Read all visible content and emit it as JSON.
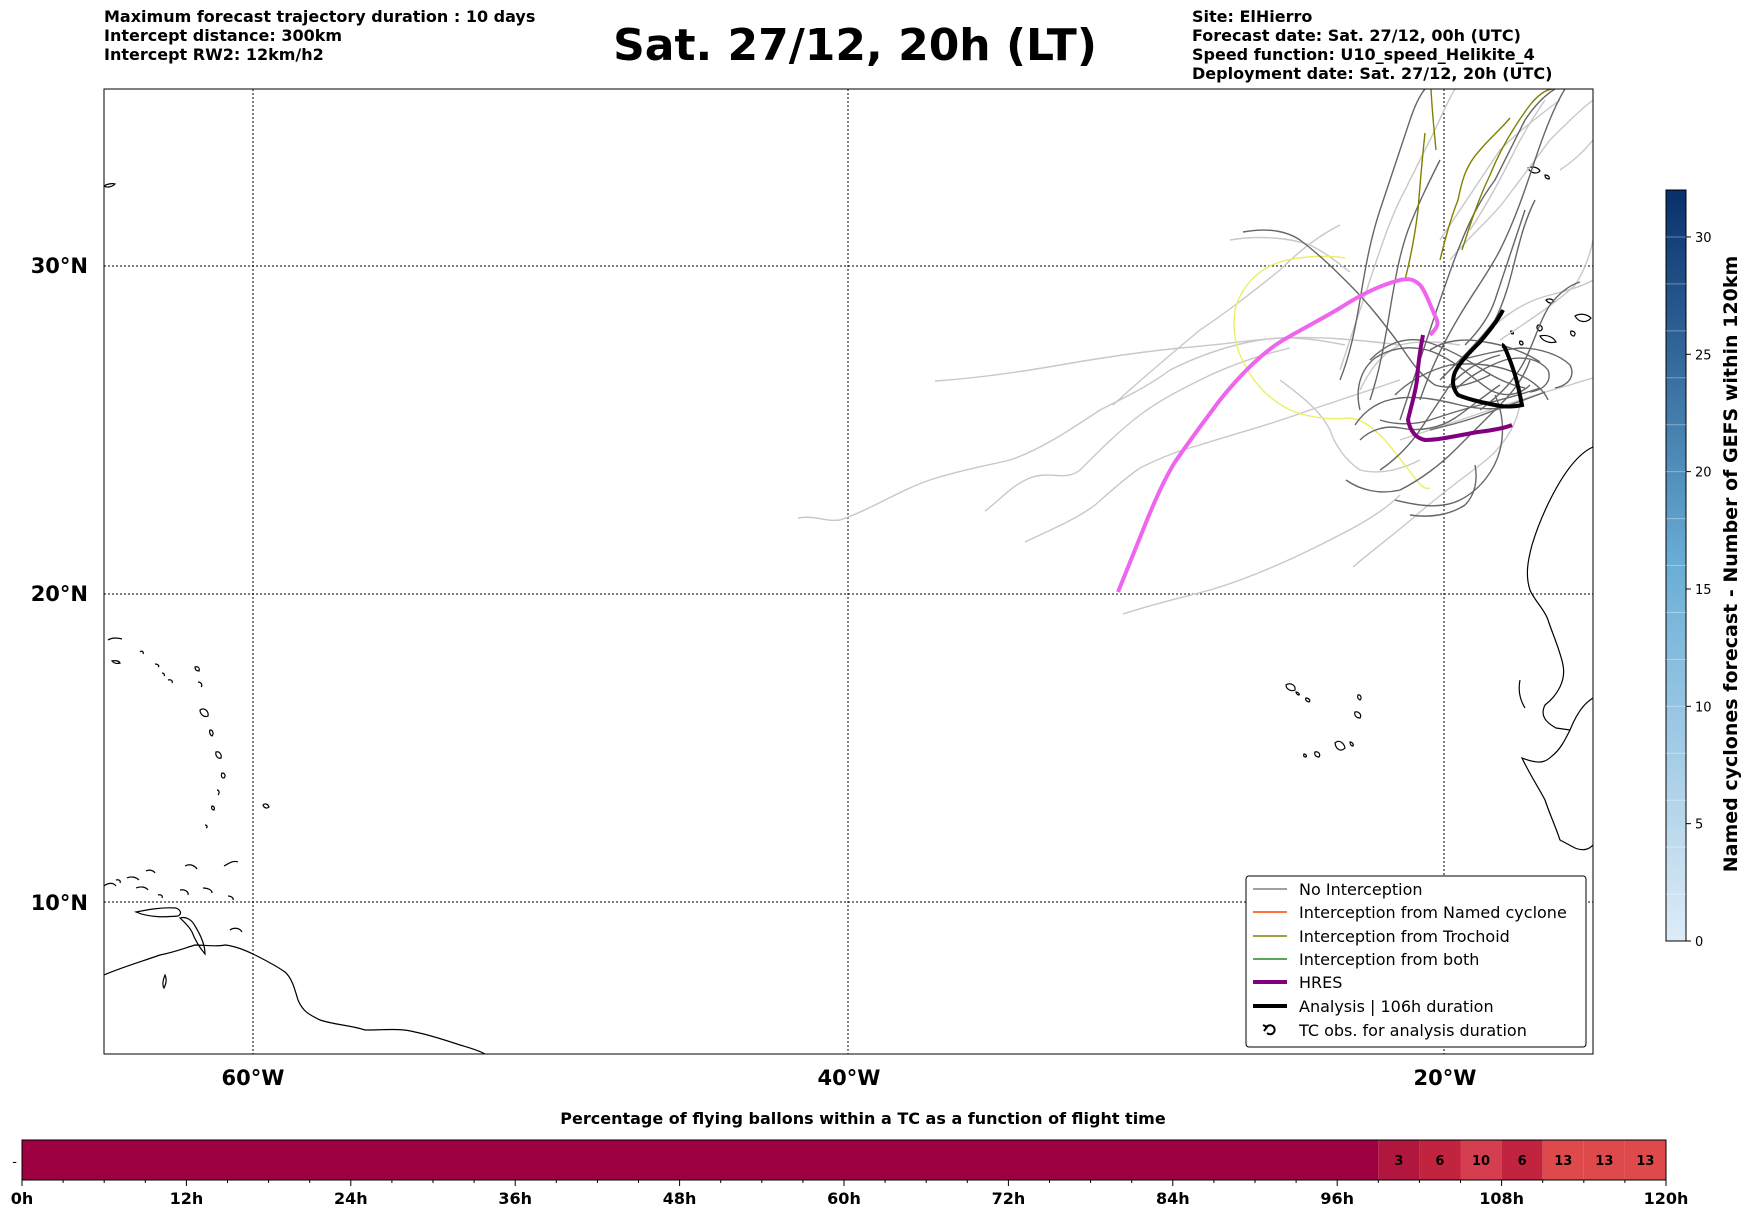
{
  "header": {
    "left_lines": [
      "Maximum forecast trajectory duration : 10 days",
      "Intercept distance: 300km",
      "Intercept RW2: 12km/h2"
    ],
    "title": "Sat. 27/12, 20h (LT)",
    "right_lines": [
      "Site: ElHierro",
      "Forecast date: Sat. 27/12, 00h (UTC)",
      "Speed function: U10_speed_Helikite_4",
      "Deployment date: Sat. 27/12, 20h (UTC)"
    ]
  },
  "map": {
    "lat_labels": [
      "30°N",
      "20°N",
      "10°N"
    ],
    "lon_labels": [
      "60°W",
      "40°W",
      "20°W"
    ],
    "legend": [
      {
        "label": "No Interception",
        "color": "#808080"
      },
      {
        "label": "Interception from Named cyclone",
        "color": "#ff4500"
      },
      {
        "label": "Interception from Trochoid",
        "color": "#808000"
      },
      {
        "label": "Interception from both",
        "color": "#228b22"
      },
      {
        "label": "HRES",
        "color": "#800080"
      },
      {
        "label": "Analysis | 106h duration",
        "color": "#000000"
      },
      {
        "label": "TC obs. for analysis duration",
        "color": "#000000",
        "icon": "cyclone-symbol"
      }
    ],
    "colors": {
      "ensemble_dark": "#666666",
      "ensemble_light": "#c8c8c8",
      "trochoid": "#808000",
      "yellow": "#eeee66",
      "magenta": "#ee66ee",
      "hres": "#800080",
      "analysis": "#000000"
    }
  },
  "colorbar": {
    "label": "Named cyclones forecast - Number of GEFS within 120km",
    "ticks": [
      "0",
      "5",
      "10",
      "15",
      "20",
      "25",
      "30"
    ],
    "min": 0,
    "max": 32,
    "color_low": "#deebf7",
    "color_high": "#08306b"
  },
  "flight_bar": {
    "title": "Percentage of flying ballons within a TC as a function of flight time",
    "ticks": [
      "0h",
      "12h",
      "24h",
      "36h",
      "48h",
      "60h",
      "72h",
      "84h",
      "96h",
      "108h",
      "120h"
    ],
    "y_tick": "-",
    "cells": [
      {
        "start_h": 0,
        "end_h": 99,
        "value": 0,
        "label": "",
        "color": "#9e0142"
      },
      {
        "start_h": 99,
        "end_h": 102,
        "value": 3,
        "label": "3",
        "color": "#b1163f"
      },
      {
        "start_h": 102,
        "end_h": 105,
        "value": 6,
        "label": "6",
        "color": "#c2243f"
      },
      {
        "start_h": 105,
        "end_h": 108,
        "value": 10,
        "label": "10",
        "color": "#d53e4f"
      },
      {
        "start_h": 108,
        "end_h": 111,
        "value": 6,
        "label": "6",
        "color": "#c2243f"
      },
      {
        "start_h": 111,
        "end_h": 114,
        "value": 13,
        "label": "13",
        "color": "#de4a4c"
      },
      {
        "start_h": 114,
        "end_h": 117,
        "value": 13,
        "label": "13",
        "color": "#de4a4c"
      },
      {
        "start_h": 117,
        "end_h": 120,
        "value": 13,
        "label": "13",
        "color": "#de4a4c"
      }
    ]
  }
}
